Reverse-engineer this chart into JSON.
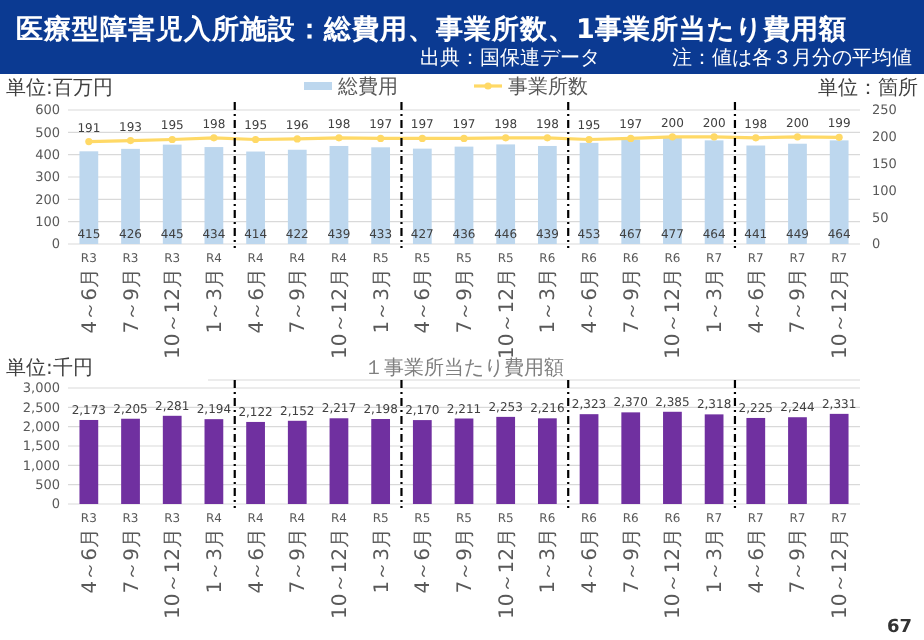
{
  "chart_data": [
    {
      "type": "bar",
      "title": "医療型障害児入所施設：総費用、事業所数、1事業所当たり費用額",
      "annotations": [
        "出典：国保連データ",
        "注：値は各３月分の平均値"
      ],
      "ylabel": "単位:百万円",
      "y2label": "単位：箇所",
      "categories": [
        "R3 4～6月",
        "R3 7～9月",
        "R3 10～12月",
        "R4 1～3月",
        "R4 4～6月",
        "R4 7～9月",
        "R4 10～12月",
        "R5 1～3月",
        "R5 4～6月",
        "R5 7～9月",
        "R5 10～12月",
        "R6 1～3月",
        "R6 4～6月",
        "R6 7～9月",
        "R6 10～12月",
        "R7 1～3月",
        "R7 4～6月",
        "R7 7～9月",
        "R7 10～12月"
      ],
      "series": [
        {
          "name": "総費用",
          "type": "bar",
          "color": "#bdd7ee",
          "values": [
            415,
            426,
            445,
            434,
            414,
            422,
            439,
            433,
            427,
            436,
            446,
            439,
            453,
            467,
            477,
            464,
            441,
            449,
            464
          ]
        },
        {
          "name": "事業所数",
          "type": "line",
          "axis": "y2",
          "color": "#ffd966",
          "values": [
            191,
            193,
            195,
            198,
            195,
            196,
            198,
            197,
            197,
            197,
            198,
            198,
            195,
            197,
            200,
            200,
            198,
            200,
            199
          ]
        }
      ],
      "ylim": [
        0,
        600
      ],
      "yticks": [
        0,
        100,
        200,
        300,
        400,
        500,
        600
      ],
      "y2lim": [
        0,
        250
      ],
      "y2ticks": [
        0,
        50,
        100,
        150,
        200,
        250
      ],
      "grid": "y",
      "legend": "top",
      "marker": "circle",
      "data_labels": true
    },
    {
      "type": "bar",
      "title": "１事業所当たり費用額",
      "ylabel": "単位:千円",
      "annotations": [
        "67"
      ],
      "categories": [
        "R3 4～6月",
        "R3 7～9月",
        "R3 10～12月",
        "R4 1～3月",
        "R4 4～6月",
        "R4 7～9月",
        "R4 10～12月",
        "R5 1～3月",
        "R5 4～6月",
        "R5 7～9月",
        "R5 10～12月",
        "R6 1～3月",
        "R6 4～6月",
        "R6 7～9月",
        "R6 10～12月",
        "R7 1～3月",
        "R7 4～6月",
        "R7 7～9月",
        "R7 10～12月"
      ],
      "series": [
        {
          "color": "#7030a0",
          "values": [
            2173,
            2205,
            2281,
            2194,
            2122,
            2152,
            2217,
            2198,
            2170,
            2211,
            2253,
            2216,
            2323,
            2370,
            2385,
            2318,
            2225,
            2244,
            2331
          ],
          "value_labels": [
            "2,173",
            "2,205",
            "2,281",
            "2,194",
            "2,122",
            "2,152",
            "2,217",
            "2,198",
            "2,170",
            "2,211",
            "2,253",
            "2,216",
            "2,323",
            "2,370",
            "2,385",
            "2,318",
            "2,225",
            "2,244",
            "2,331"
          ]
        }
      ],
      "ylim": [
        0,
        3000
      ],
      "yticks": [
        {
          "value": 0,
          "label": "0"
        },
        {
          "value": 500,
          "label": "500"
        },
        {
          "value": 1000,
          "label": "1,000"
        },
        {
          "value": 1500,
          "label": "1,500"
        },
        {
          "value": 2000,
          "label": "2,000"
        },
        {
          "value": 2500,
          "label": "2,500"
        },
        {
          "value": 3000,
          "label": "3,000"
        }
      ],
      "grid": "y"
    }
  ]
}
